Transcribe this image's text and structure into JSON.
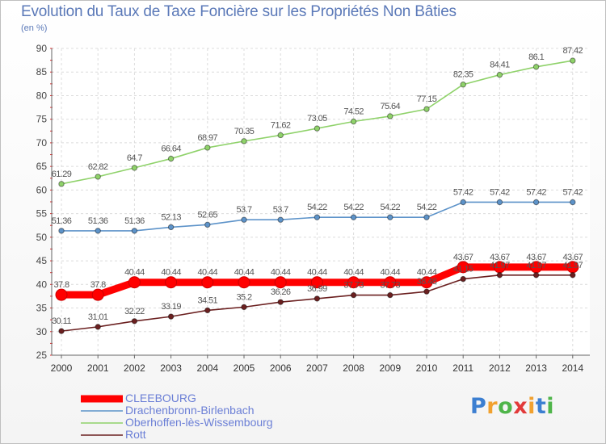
{
  "chart_data": {
    "type": "line",
    "title": "Evolution du Taux de Taxe Foncière sur les Propriétés Non Bâties",
    "subtitle": "(en %)",
    "x": [
      "2000",
      "2001",
      "2002",
      "2003",
      "2004",
      "2005",
      "2006",
      "2007",
      "2008",
      "2009",
      "2010",
      "2011",
      "2012",
      "2013",
      "2014"
    ],
    "ylim": [
      25,
      90
    ],
    "yticks": [
      25,
      30,
      35,
      40,
      45,
      50,
      55,
      60,
      65,
      70,
      75,
      80,
      85,
      90
    ],
    "grid": true,
    "legend_position": "bottom-left",
    "series": [
      {
        "name": "CLEEBOURG",
        "color": "#ff0000",
        "values": [
          37.8,
          37.8,
          40.44,
          40.44,
          40.44,
          40.44,
          40.44,
          40.44,
          40.44,
          40.44,
          40.44,
          43.67,
          43.67,
          43.67,
          43.67
        ],
        "labels": [
          "37.8",
          "37.8",
          "40.44",
          "40.44",
          "40.44",
          "40.44",
          "40.44",
          "40.44",
          "40.44",
          "40.44",
          "40.44",
          "43.67",
          "43.67",
          "43.67",
          "43.67"
        ]
      },
      {
        "name": "Drachenbronn-Birlenbach",
        "color": "#5d93c9",
        "values": [
          51.36,
          51.36,
          51.36,
          52.13,
          52.65,
          53.7,
          53.7,
          54.22,
          54.22,
          54.22,
          54.22,
          57.42,
          57.42,
          57.42,
          57.42
        ],
        "labels": [
          "51.36",
          "51.36",
          "51.36",
          "52.13",
          "52.65",
          "53.7",
          "53.7",
          "54.22",
          "54.22",
          "54.22",
          "54.22",
          "57.42",
          "57.42",
          "57.42",
          "57.42"
        ]
      },
      {
        "name": "Oberhoffen-lès-Wissembourg",
        "color": "#8fd26a",
        "values": [
          61.29,
          62.82,
          64.7,
          66.64,
          68.97,
          70.35,
          71.62,
          73.05,
          74.52,
          75.64,
          77.15,
          82.35,
          84.41,
          86.1,
          87.42
        ],
        "labels": [
          "61.29",
          "62.82",
          "64.7",
          "66.64",
          "68.97",
          "70.35",
          "71.62",
          "73.05",
          "74.52",
          "75.64",
          "77.15",
          "82.35",
          "84.41",
          "86.1",
          "87.42"
        ]
      },
      {
        "name": "Rott",
        "color": "#6b2020",
        "values": [
          30.11,
          31.01,
          32.22,
          33.19,
          34.51,
          35.2,
          36.26,
          36.99,
          37.73,
          37.73,
          38.48,
          41.15,
          41.97,
          41.97,
          41.97
        ],
        "labels": [
          "30.11",
          "31.01",
          "32.22",
          "33.19",
          "34.51",
          "35.2",
          "36.26",
          "36.99",
          "37.73",
          "37.73",
          "38.48",
          "41.15",
          "41.97",
          "41.97",
          "41.97"
        ]
      }
    ]
  },
  "logo": {
    "text": "Proxiti"
  }
}
